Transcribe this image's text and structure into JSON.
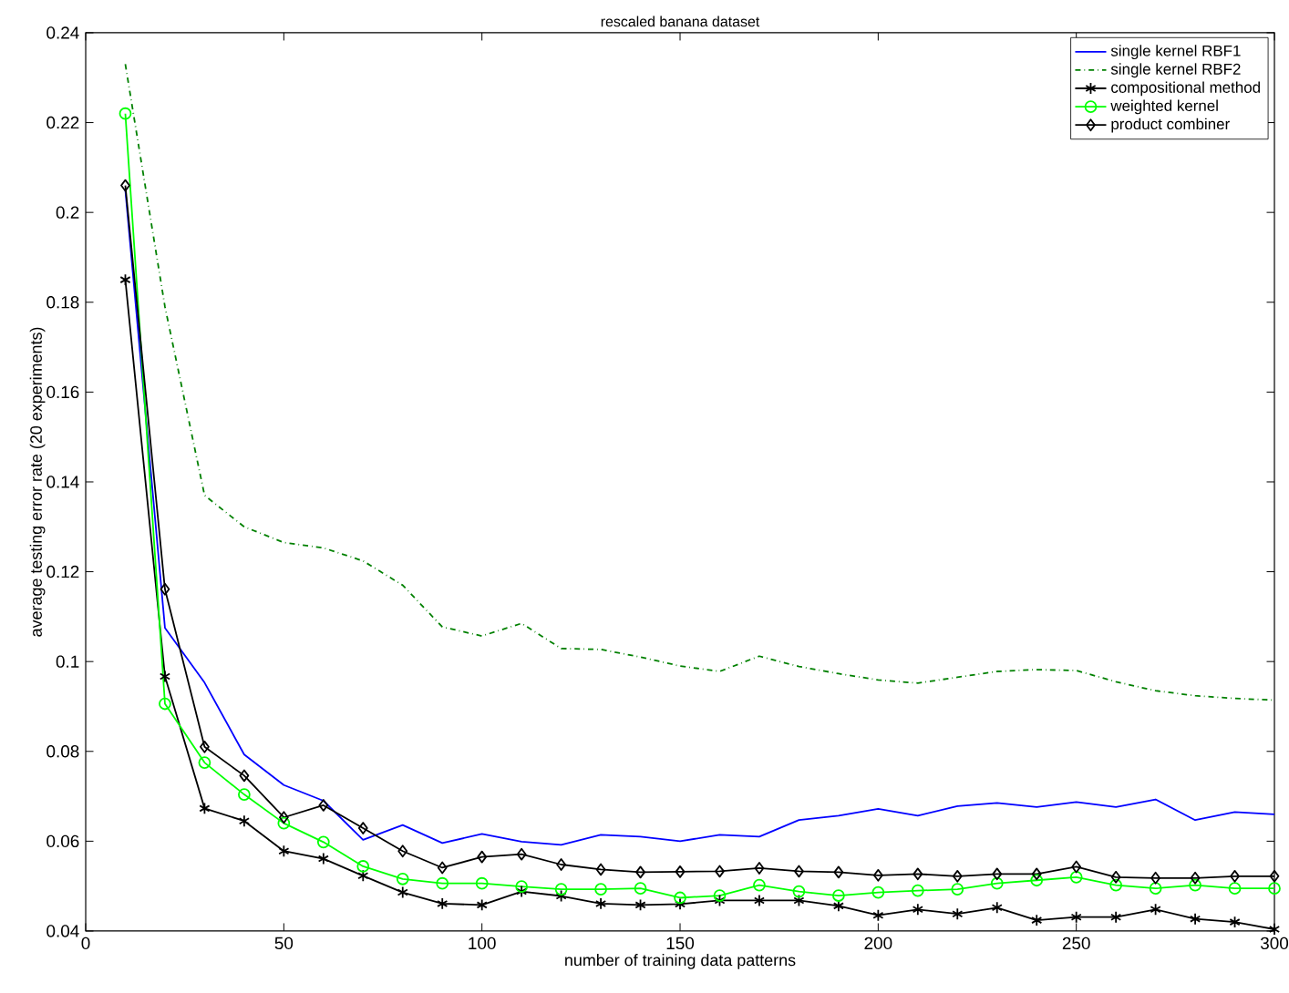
{
  "chart_data": {
    "type": "line",
    "title": "rescaled banana dataset",
    "xlabel": "number of training data patterns",
    "ylabel": "average testing error rate (20 experiments)",
    "x": [
      10,
      20,
      30,
      40,
      50,
      60,
      70,
      80,
      90,
      100,
      110,
      120,
      130,
      140,
      150,
      160,
      170,
      180,
      190,
      200,
      210,
      220,
      230,
      240,
      250,
      260,
      270,
      280,
      290,
      300
    ],
    "series": [
      {
        "name": "single kernel RBF1",
        "color": "#0000ff",
        "marker": "none",
        "line_style": "solid",
        "values": [
          0.205,
          0.1075,
          0.0953,
          0.0793,
          0.0725,
          0.069,
          0.0603,
          0.0636,
          0.0596,
          0.0616,
          0.0599,
          0.0592,
          0.0614,
          0.061,
          0.06,
          0.0614,
          0.061,
          0.0647,
          0.0657,
          0.0672,
          0.0657,
          0.0678,
          0.0685,
          0.0676,
          0.0687,
          0.0676,
          0.0693,
          0.0647,
          0.0665,
          0.066
        ]
      },
      {
        "name": "single kernel RBF2",
        "color": "#008000",
        "marker": "none",
        "line_style": "dashed",
        "values": [
          0.233,
          0.179,
          0.137,
          0.13,
          0.1265,
          0.1253,
          0.1224,
          0.117,
          0.1077,
          0.1057,
          0.1085,
          0.1029,
          0.1027,
          0.101,
          0.099,
          0.0978,
          0.1012,
          0.0989,
          0.0973,
          0.0959,
          0.0952,
          0.0965,
          0.0978,
          0.0982,
          0.098,
          0.0955,
          0.0935,
          0.0924,
          0.0918,
          0.0914
        ]
      },
      {
        "name": "compositional method",
        "color": "#000000",
        "marker": "cross",
        "line_style": "solid",
        "values": [
          0.185,
          0.0967,
          0.0673,
          0.0645,
          0.0578,
          0.0561,
          0.0523,
          0.0486,
          0.0461,
          0.0458,
          0.0488,
          0.0478,
          0.0461,
          0.0458,
          0.046,
          0.0468,
          0.0468,
          0.0468,
          0.0456,
          0.0435,
          0.0448,
          0.0438,
          0.0452,
          0.0424,
          0.0431,
          0.0431,
          0.0448,
          0.0427,
          0.042,
          0.0404
        ]
      },
      {
        "name": "weighted kernel",
        "color": "#00ff00",
        "marker": "circle",
        "line_style": "solid",
        "values": [
          0.222,
          0.0906,
          0.0775,
          0.0704,
          0.064,
          0.0598,
          0.0544,
          0.0516,
          0.0506,
          0.0506,
          0.0499,
          0.0493,
          0.0493,
          0.0495,
          0.0474,
          0.0479,
          0.0502,
          0.0488,
          0.0479,
          0.0486,
          0.049,
          0.0493,
          0.0506,
          0.0513,
          0.052,
          0.0502,
          0.0495,
          0.0502,
          0.0495,
          0.0495
        ]
      },
      {
        "name": "product combiner",
        "color": "#000000",
        "marker": "diamond",
        "line_style": "solid",
        "values": [
          0.206,
          0.1161,
          0.081,
          0.0746,
          0.0653,
          0.068,
          0.0629,
          0.0578,
          0.0541,
          0.0565,
          0.0571,
          0.0548,
          0.0537,
          0.0531,
          0.0532,
          0.0533,
          0.054,
          0.0533,
          0.0531,
          0.0524,
          0.0527,
          0.0522,
          0.0527,
          0.0527,
          0.0543,
          0.052,
          0.0518,
          0.0518,
          0.0522,
          0.0522
        ]
      }
    ],
    "xlim": [
      0,
      300
    ],
    "ylim": [
      0.04,
      0.24
    ],
    "xticks": [
      0,
      50,
      100,
      150,
      200,
      250,
      300
    ],
    "yticks": [
      0.04,
      0.06,
      0.08,
      0.1,
      0.12,
      0.14,
      0.16,
      0.18,
      0.2,
      0.22,
      0.24
    ],
    "grid": false,
    "legend": "top right"
  }
}
